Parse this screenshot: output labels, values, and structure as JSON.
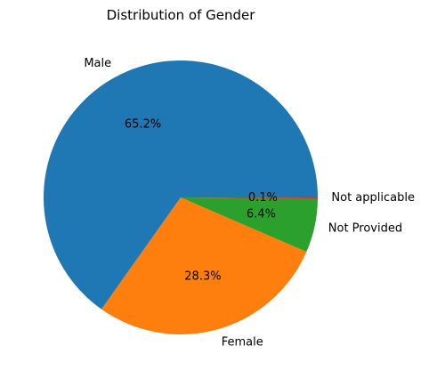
{
  "chart_data": {
    "type": "pie",
    "title": "Distribution of Gender",
    "slices": [
      {
        "label": "Male",
        "value": 65.2,
        "pct_label": "65.2%",
        "color": "#1f77b4"
      },
      {
        "label": "Female",
        "value": 28.3,
        "pct_label": "28.3%",
        "color": "#ff7f0e"
      },
      {
        "label": "Not Provided",
        "value": 6.4,
        "pct_label": "6.4%",
        "color": "#2ca02c"
      },
      {
        "label": "Not applicable",
        "value": 0.1,
        "pct_label": "0.1%",
        "color": "#d62728"
      }
    ],
    "start_angle_deg": 0,
    "direction": "counterclockwise",
    "legend": false
  }
}
